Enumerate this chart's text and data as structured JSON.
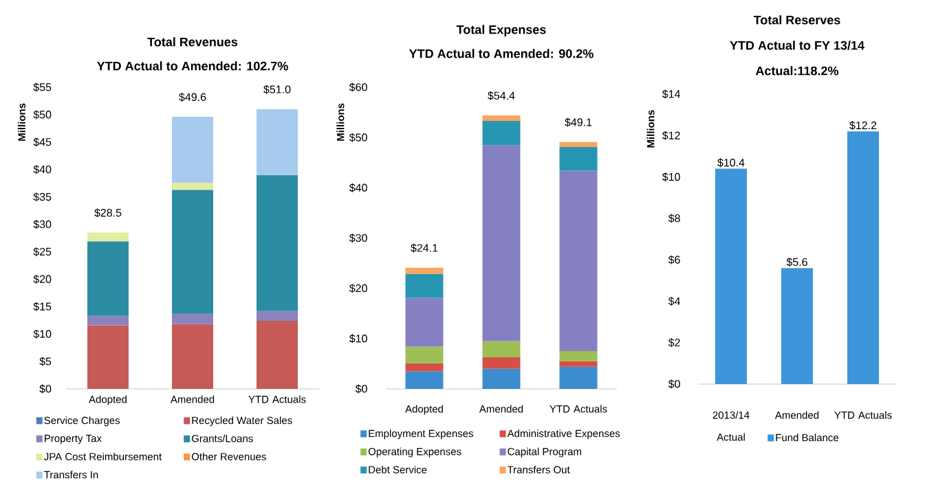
{
  "chart_data": [
    {
      "type": "bar",
      "stacked": true,
      "title": "Total Revenues",
      "subtitle": "YTD Actual to Amended: 102.7%",
      "ylabel": "Millions",
      "categories": [
        "Adopted",
        "Amended",
        "YTD Actuals"
      ],
      "series": [
        {
          "name": "Service Charges",
          "color": "#4a7ebb",
          "values": [
            null,
            null,
            null
          ]
        },
        {
          "name": "Recycled Water Sales",
          "color": "#c65a57",
          "values": [
            11.6,
            11.8,
            12.4
          ]
        },
        {
          "name": "Property Tax",
          "color": "#8b83bd",
          "values": [
            1.7,
            1.9,
            1.8
          ]
        },
        {
          "name": "Grants/Loans",
          "color": "#2b8ca3",
          "values": [
            13.6,
            22.6,
            24.8
          ]
        },
        {
          "name": "JPA Cost Reimbursement",
          "color": "#e3eca0",
          "values": [
            1.6,
            1.3,
            null
          ]
        },
        {
          "name": "Other Revenues",
          "color": "#f79646",
          "values": [
            null,
            null,
            null
          ]
        },
        {
          "name": "Transfers In",
          "color": "#a6cbee",
          "values": [
            null,
            12.0,
            12.0
          ]
        }
      ],
      "totals": [
        "$28.5",
        "$49.6",
        "$51.0"
      ],
      "ylim": [
        0,
        55
      ],
      "yticks": [
        {
          "value": 0,
          "label": "$0"
        },
        {
          "value": 5,
          "label": "$5"
        },
        {
          "value": 10,
          "label": "$10"
        },
        {
          "value": 15,
          "label": "$15"
        },
        {
          "value": 20,
          "label": "$20"
        },
        {
          "value": 25,
          "label": "$25"
        },
        {
          "value": 30,
          "label": "$30"
        },
        {
          "value": 35,
          "label": "$35"
        },
        {
          "value": 40,
          "label": "$40"
        },
        {
          "value": 45,
          "label": "$45"
        },
        {
          "value": 50,
          "label": "$50"
        },
        {
          "value": 55,
          "label": "$55"
        }
      ],
      "legend": "bottom"
    },
    {
      "type": "bar",
      "stacked": true,
      "title": "Total Expenses",
      "subtitle": "YTD Actual to Amended: 90.2%",
      "ylabel": "Millions",
      "categories": [
        "Adopted",
        "Amended",
        "YTD Actuals"
      ],
      "series": [
        {
          "name": "Employment Expenses",
          "color": "#3b8dcf",
          "values": [
            3.5,
            4.0,
            4.4
          ]
        },
        {
          "name": "Administrative Expenses",
          "color": "#d64f47",
          "values": [
            1.6,
            2.3,
            1.1
          ]
        },
        {
          "name": "Operating Expenses",
          "color": "#9dbf55",
          "values": [
            3.3,
            3.2,
            2.0
          ]
        },
        {
          "name": "Capital Program",
          "color": "#8580c2",
          "values": [
            9.7,
            39.0,
            35.9
          ]
        },
        {
          "name": "Debt Service",
          "color": "#2696b3",
          "values": [
            4.8,
            4.8,
            4.7
          ]
        },
        {
          "name": "Transfers Out",
          "color": "#f9a55f",
          "values": [
            1.2,
            1.1,
            1.0
          ]
        }
      ],
      "totals": [
        "$24.1",
        "$54.4",
        "$49.1"
      ],
      "ylim": [
        0,
        60
      ],
      "yticks": [
        {
          "value": 0,
          "label": "$0"
        },
        {
          "value": 10,
          "label": "$10"
        },
        {
          "value": 20,
          "label": "$20"
        },
        {
          "value": 30,
          "label": "$30"
        },
        {
          "value": 40,
          "label": "$40"
        },
        {
          "value": 50,
          "label": "$50"
        },
        {
          "value": 60,
          "label": "$60"
        }
      ],
      "legend": "bottom"
    },
    {
      "type": "bar",
      "title": "Total Reserves",
      "subtitle": "YTD Actual to FY 13/14 Actual:118.2%",
      "ylabel": "Millions",
      "categories": [
        "2013/14 Actual",
        "Amended",
        "YTD Actuals"
      ],
      "series": [
        {
          "name": "Fund Balance",
          "color": "#3d95da",
          "values": [
            10.4,
            5.6,
            12.2
          ],
          "value_labels": [
            "$10.4",
            "$5.6",
            "$12.2"
          ]
        }
      ],
      "ylim": [
        0,
        14
      ],
      "yticks": [
        {
          "value": 0,
          "label": "$0"
        },
        {
          "value": 2,
          "label": "$2"
        },
        {
          "value": 4,
          "label": "$4"
        },
        {
          "value": 6,
          "label": "$6"
        },
        {
          "value": 8,
          "label": "$8"
        },
        {
          "value": 10,
          "label": "$10"
        },
        {
          "value": 12,
          "label": "$12"
        },
        {
          "value": 14,
          "label": "$14"
        }
      ],
      "legend": "bottom"
    }
  ]
}
